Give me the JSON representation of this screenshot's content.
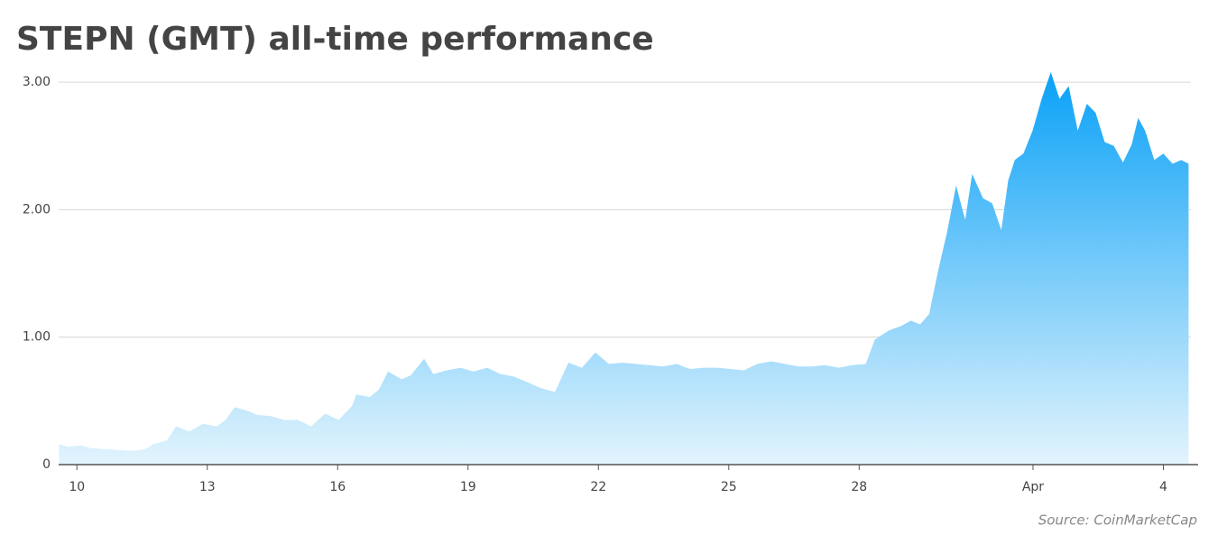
{
  "chart_data": {
    "type": "area",
    "title": "STEPN (GMT) all-time performance",
    "source": "Source: CoinMarketCap",
    "color": "#0aa1f7",
    "x": [
      9.59,
      9.79,
      10.1,
      10.31,
      10.73,
      11.14,
      11.35,
      11.56,
      11.76,
      12.07,
      12.28,
      12.59,
      12.9,
      13.22,
      13.42,
      13.63,
      13.94,
      14.15,
      14.46,
      14.77,
      15.08,
      15.39,
      15.71,
      16.02,
      16.33,
      16.43,
      16.74,
      16.95,
      17.16,
      17.47,
      17.68,
      17.99,
      18.2,
      18.51,
      18.82,
      19.13,
      19.44,
      19.75,
      20.06,
      20.27,
      20.68,
      21.0,
      21.31,
      21.62,
      21.93,
      22.24,
      22.55,
      22.86,
      23.17,
      23.49,
      23.8,
      24.11,
      24.42,
      24.73,
      25.04,
      25.35,
      25.66,
      25.98,
      26.29,
      26.6,
      26.91,
      27.22,
      27.53,
      27.84,
      28.15,
      28.36,
      28.67,
      28.98,
      29.19,
      29.4,
      29.61,
      29.81,
      30.02,
      30.23,
      30.44,
      30.6,
      30.85,
      31.06,
      31.27,
      31.43,
      31.58,
      31.78,
      31.99,
      32.2,
      32.41,
      32.61,
      32.82,
      33.03,
      33.24,
      33.44,
      33.65,
      33.86,
      34.07,
      34.27,
      34.42,
      34.58,
      34.79,
      35.0,
      35.21,
      35.41,
      35.58
    ],
    "values": [
      0.16,
      0.14,
      0.15,
      0.13,
      0.12,
      0.11,
      0.11,
      0.12,
      0.16,
      0.19,
      0.3,
      0.26,
      0.32,
      0.3,
      0.35,
      0.45,
      0.42,
      0.39,
      0.38,
      0.35,
      0.35,
      0.3,
      0.4,
      0.35,
      0.46,
      0.55,
      0.53,
      0.59,
      0.73,
      0.67,
      0.7,
      0.83,
      0.71,
      0.74,
      0.76,
      0.73,
      0.76,
      0.71,
      0.69,
      0.66,
      0.6,
      0.57,
      0.8,
      0.76,
      0.88,
      0.79,
      0.8,
      0.79,
      0.78,
      0.77,
      0.79,
      0.75,
      0.76,
      0.76,
      0.75,
      0.74,
      0.79,
      0.81,
      0.79,
      0.77,
      0.77,
      0.78,
      0.76,
      0.78,
      0.79,
      0.98,
      1.05,
      1.09,
      1.13,
      1.1,
      1.18,
      1.51,
      1.82,
      2.19,
      1.92,
      2.28,
      2.09,
      2.05,
      1.84,
      2.23,
      2.39,
      2.44,
      2.62,
      2.87,
      3.08,
      2.87,
      2.97,
      2.62,
      2.83,
      2.76,
      2.53,
      2.5,
      2.37,
      2.51,
      2.72,
      2.62,
      2.39,
      2.44,
      2.36,
      2.39,
      2.36
    ],
    "xlim": [
      9.58,
      35.8
    ],
    "xticks": [
      10,
      13,
      16,
      19,
      22,
      25,
      28,
      {
        "value": 32,
        "label": "Apr"
      },
      {
        "value": 35,
        "label": "4"
      }
    ],
    "ylim": [
      0,
      3.1
    ],
    "yticks": [
      0,
      {
        "value": 1,
        "label": "1.00"
      },
      {
        "value": 2,
        "label": "2.00"
      },
      {
        "value": 3,
        "label": "3.00"
      }
    ],
    "grid": true
  }
}
